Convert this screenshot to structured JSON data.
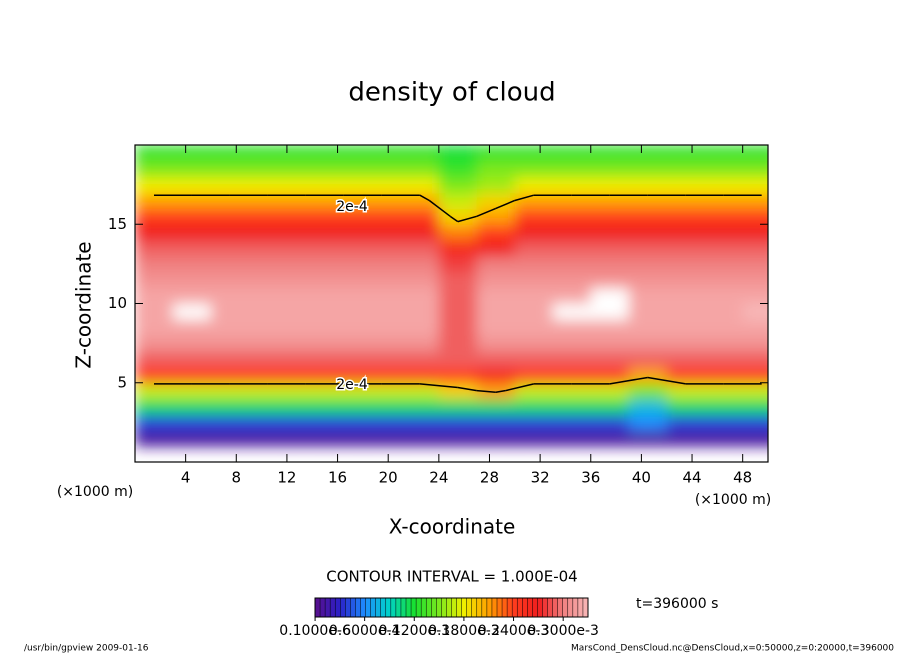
{
  "chart_data": {
    "type": "contour",
    "title": "density of cloud",
    "xlabel": "X-coordinate",
    "ylabel": "Z-coordinate",
    "x_unit": "(×1000 m)",
    "xlim": [
      0,
      50
    ],
    "ylim": [
      0,
      20
    ],
    "xticks": [
      4,
      8,
      12,
      16,
      20,
      24,
      28,
      32,
      36,
      40,
      44,
      48
    ],
    "yticks": [
      5,
      10,
      15
    ],
    "x": [
      1.5,
      4.5,
      7.5,
      10.5,
      13.5,
      16.5,
      19.5,
      22.5,
      25.5,
      28.5,
      31.5,
      34.5,
      37.5,
      40.5,
      43.5,
      46.5,
      49.5
    ],
    "y": [
      0.5,
      1.5,
      2.5,
      3.5,
      4.5,
      5.5,
      6.5,
      7.5,
      8.5,
      9.5,
      10.5,
      11.5,
      12.5,
      13.5,
      14.5,
      15.5,
      16.5,
      17.5,
      18.5,
      19.5
    ],
    "values": [
      [
        null,
        null,
        null,
        null,
        null,
        null,
        null,
        null,
        null,
        null,
        null,
        null,
        null,
        null,
        null,
        null,
        null
      ],
      [
        1e-05,
        1e-05,
        1e-05,
        1e-05,
        1e-05,
        1e-05,
        1e-05,
        1e-05,
        1e-05,
        1e-05,
        1e-05,
        1e-05,
        1e-05,
        1e-05,
        1e-05,
        1e-05,
        1e-05
      ],
      [
        4e-05,
        4e-05,
        4e-05,
        4e-05,
        4e-05,
        4e-05,
        4e-05,
        4e-05,
        4e-05,
        4e-05,
        4e-05,
        4e-05,
        4e-05,
        6e-05,
        4e-05,
        4e-05,
        4e-05
      ],
      [
        0.00011,
        0.00011,
        0.00011,
        0.00011,
        0.00011,
        0.00011,
        0.00011,
        0.00011,
        0.00011,
        0.00011,
        0.00011,
        0.00011,
        0.00011,
        8e-05,
        0.00011,
        0.00011,
        0.00011
      ],
      [
        0.00017,
        0.00017,
        0.00017,
        0.00017,
        0.00017,
        0.00017,
        0.00017,
        0.00017,
        0.00019,
        0.00021,
        0.00017,
        0.00017,
        0.00017,
        0.00015,
        0.00017,
        0.00017,
        0.00017
      ],
      [
        0.00024,
        0.00024,
        0.00024,
        0.00024,
        0.00024,
        0.00024,
        0.00024,
        0.00024,
        0.00024,
        0.00026,
        0.00024,
        0.00024,
        0.00024,
        0.00021,
        0.00024,
        0.00024,
        0.00024
      ],
      [
        0.00029,
        0.00029,
        0.00029,
        0.00029,
        0.00029,
        0.00029,
        0.00029,
        0.00029,
        0.00029,
        0.00029,
        0.00029,
        0.00029,
        0.00029,
        0.00029,
        0.00029,
        0.00029,
        0.00029
      ],
      [
        0.00031,
        0.00031,
        0.00031,
        0.00031,
        0.00031,
        0.00031,
        0.00031,
        0.00031,
        0.00029,
        0.00031,
        0.00031,
        0.00031,
        0.00031,
        0.00031,
        0.00031,
        0.00031,
        0.00031
      ],
      [
        0.00032,
        0.00032,
        0.00032,
        0.00032,
        0.00032,
        0.00032,
        0.00032,
        0.00032,
        0.00029,
        0.00032,
        0.00032,
        0.00032,
        0.00032,
        0.00032,
        0.00032,
        0.00032,
        0.00032
      ],
      [
        0.00032,
        0.00034,
        0.00032,
        0.00032,
        0.00032,
        0.00032,
        0.00032,
        0.00032,
        0.00029,
        0.00032,
        0.00032,
        0.00034,
        0.00034,
        0.00032,
        0.00032,
        0.00032,
        0.00033
      ],
      [
        0.00032,
        0.00032,
        0.00032,
        0.00032,
        0.00032,
        0.00032,
        0.00032,
        0.00032,
        0.00029,
        0.00032,
        0.00032,
        0.00032,
        0.00034,
        0.00032,
        0.00032,
        0.00032,
        0.00032
      ],
      [
        0.00031,
        0.00031,
        0.00031,
        0.00031,
        0.00031,
        0.00031,
        0.00031,
        0.00031,
        0.00029,
        0.00031,
        0.00031,
        0.00031,
        0.00031,
        0.00031,
        0.00031,
        0.00031,
        0.00031
      ],
      [
        0.0003,
        0.0003,
        0.0003,
        0.0003,
        0.0003,
        0.0003,
        0.0003,
        0.0003,
        0.00028,
        0.0003,
        0.0003,
        0.0003,
        0.0003,
        0.0003,
        0.0003,
        0.0003,
        0.0003
      ],
      [
        0.00029,
        0.00029,
        0.00029,
        0.00029,
        0.00029,
        0.00029,
        0.00029,
        0.00029,
        0.00026,
        0.00027,
        0.00029,
        0.00029,
        0.00029,
        0.00029,
        0.00029,
        0.00029,
        0.00029
      ],
      [
        0.00027,
        0.00027,
        0.00027,
        0.00027,
        0.00027,
        0.00027,
        0.00027,
        0.00027,
        0.00022,
        0.00024,
        0.00027,
        0.00027,
        0.00027,
        0.00027,
        0.00027,
        0.00027,
        0.00027
      ],
      [
        0.00024,
        0.00024,
        0.00024,
        0.00024,
        0.00024,
        0.00024,
        0.00024,
        0.00024,
        0.00019,
        0.00021,
        0.00024,
        0.00024,
        0.00024,
        0.00024,
        0.00024,
        0.00024,
        0.00024
      ],
      [
        0.00021,
        0.00021,
        0.00021,
        0.00021,
        0.00021,
        0.00021,
        0.00021,
        0.00021,
        0.00017,
        0.00019,
        0.00021,
        0.00021,
        0.00021,
        0.00021,
        0.00021,
        0.00021,
        0.00021
      ],
      [
        0.00018,
        0.00018,
        0.00018,
        0.00018,
        0.00018,
        0.00018,
        0.00018,
        0.00018,
        0.00015,
        0.00016,
        0.00018,
        0.00018,
        0.00018,
        0.00018,
        0.00018,
        0.00018,
        0.00018
      ],
      [
        0.00015,
        0.00015,
        0.00015,
        0.00015,
        0.00015,
        0.00015,
        0.00015,
        0.00015,
        0.00013,
        0.00015,
        0.00015,
        0.00015,
        0.00015,
        0.00015,
        0.00015,
        0.00015,
        0.00015
      ],
      [
        0.00013,
        0.00013,
        0.00013,
        0.00013,
        0.00013,
        0.00013,
        0.00013,
        0.00013,
        0.00012,
        0.00013,
        0.00013,
        0.00013,
        0.00013,
        0.00013,
        0.00013,
        0.00013,
        0.00013
      ]
    ],
    "zlim": [
      0,
      0.00033
    ],
    "colorscale": [
      "#5a0f8c",
      "#2a20c8",
      "#1e8cff",
      "#00d2c8",
      "#18e030",
      "#7ce81e",
      "#f0f000",
      "#ffa000",
      "#ff3c1e",
      "#f01e1e",
      "#f08080",
      "#f8b8b8"
    ],
    "over_color": "#ffffff",
    "contour_levels": [
      {
        "value": 0.0002,
        "label": "2e-4"
      }
    ],
    "contour_interval": "CONTOUR INTERVAL = 1.000E-04",
    "colorbar_ticks": [
      {
        "value": 1e-07,
        "label": "0.1000e-6"
      },
      {
        "value": 6e-05,
        "label": "0.6000e-4"
      },
      {
        "value": 0.00012,
        "label": "0.1200e-3"
      },
      {
        "value": 0.00018,
        "label": "0.1800e-3"
      },
      {
        "value": 0.00024,
        "label": "0.2400e-3"
      },
      {
        "value": 0.0003,
        "label": "0.3000e-3"
      }
    ],
    "time_label": "t=396000 s",
    "footer_left": "/usr/bin/gpview  2009-01-16",
    "footer_right": "MarsCond_DensCloud.nc@DensCloud,x=0:50000,z=0:20000,t=396000"
  }
}
